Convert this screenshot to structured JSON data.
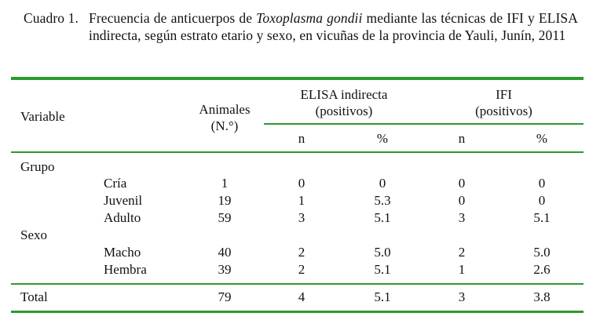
{
  "caption": {
    "label": "Cuadro 1.",
    "text_before_italic": "Frecuencia de anticuerpos de ",
    "italic": "Toxoplasma gondii",
    "text_after_italic": " mediante las técnicas de IFI y ELISA indirecta, según estrato etario y sexo, en vicuñas de la provincia de Yauli, Junín, 2011"
  },
  "header": {
    "variable": "Variable",
    "animales_line1": "Animales",
    "animales_line2": "(N.°)",
    "elisa_line1": "ELISA indirecta",
    "elisa_line2": "(positivos)",
    "ifi_line1": "IFI",
    "ifi_line2": "(positivos)",
    "n": "n",
    "pct": "%"
  },
  "groups": [
    {
      "name": "Grupo",
      "rows": [
        {
          "label": "Cría",
          "animales": "1",
          "elisa_n": "0",
          "elisa_pct": "0",
          "ifi_n": "0",
          "ifi_pct": "0"
        },
        {
          "label": "Juvenil",
          "animales": "19",
          "elisa_n": "1",
          "elisa_pct": "5.3",
          "ifi_n": "0",
          "ifi_pct": "0"
        },
        {
          "label": "Adulto",
          "animales": "59",
          "elisa_n": "3",
          "elisa_pct": "5.1",
          "ifi_n": "3",
          "ifi_pct": "5.1"
        }
      ]
    },
    {
      "name": "Sexo",
      "rows": [
        {
          "label": "Macho",
          "animales": "40",
          "elisa_n": "2",
          "elisa_pct": "5.0",
          "ifi_n": "2",
          "ifi_pct": "5.0"
        },
        {
          "label": "Hembra",
          "animales": "39",
          "elisa_n": "2",
          "elisa_pct": "5.1",
          "ifi_n": "1",
          "ifi_pct": "2.6"
        }
      ]
    }
  ],
  "total": {
    "label": "Total",
    "animales": "79",
    "elisa_n": "4",
    "elisa_pct": "5.1",
    "ifi_n": "3",
    "ifi_pct": "3.8"
  },
  "colors": {
    "rule": "#2c9a2c",
    "text": "#111111"
  }
}
